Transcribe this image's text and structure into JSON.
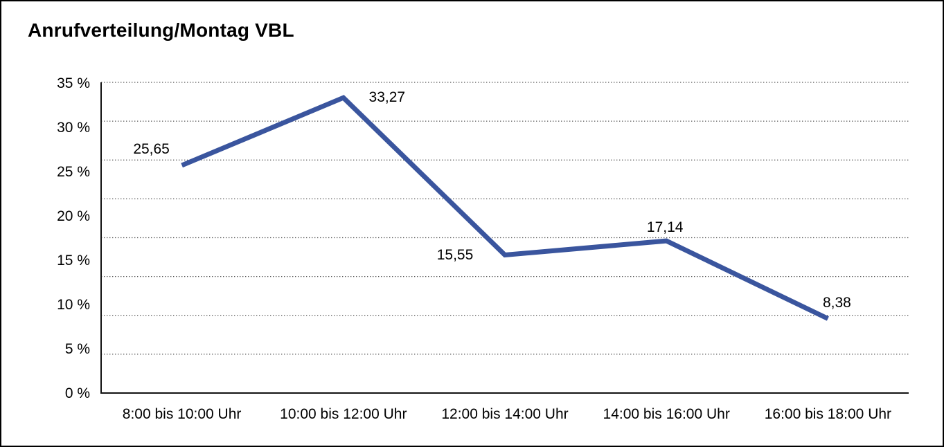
{
  "header": {
    "title": "Anrufverteilung/Montag VBL"
  },
  "chart_data": {
    "type": "line",
    "title": "Anrufverteilung/Montag VBL",
    "categories": [
      "8:00 bis 10:00 Uhr",
      "10:00 bis 12:00 Uhr",
      "12:00 bis 14:00 Uhr",
      "14:00 bis 16:00 Uhr",
      "16:00 bis 18:00 Uhr"
    ],
    "values": [
      25.65,
      33.27,
      15.55,
      17.14,
      8.38
    ],
    "value_labels": [
      "25,65",
      "33,27",
      "15,55",
      "17,14",
      "8,38"
    ],
    "ylim": [
      0,
      35
    ],
    "ytick_labels_top_to_bottom": [
      "35 %",
      "30 %",
      "25 %",
      "20 %",
      "15 %",
      "10 %",
      "5 %",
      "0 %"
    ],
    "xlabel": "",
    "ylabel": "",
    "grid": "horizontal dotted",
    "legend_position": "none",
    "colors": {
      "line": "#3A559E",
      "axis": "#111111",
      "gridline": "#555555",
      "text": "#000000",
      "background": "#FFFFFF"
    }
  }
}
